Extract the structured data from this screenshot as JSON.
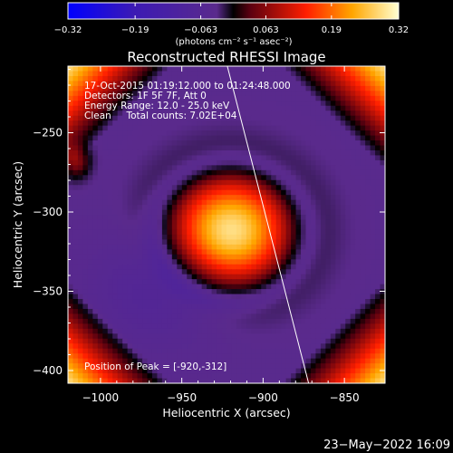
{
  "chart_data": {
    "type": "heatmap",
    "title": "Reconstructed RHESSI Image",
    "xlabel": "Heliocentric X (arcsec)",
    "ylabel": "Heliocentric Y (arcsec)",
    "xlim": [
      -1020,
      -825
    ],
    "ylim": [
      -408,
      -208
    ],
    "x_ticks": [
      -1000,
      -950,
      -900,
      -850
    ],
    "y_ticks": [
      -250,
      -300,
      -350,
      -400
    ],
    "x_tick_labels": [
      "−1000",
      "−950",
      "−900",
      "−850"
    ],
    "y_tick_labels": [
      "−250",
      "−300",
      "−350",
      "−400"
    ],
    "colorbar": {
      "min": -0.32,
      "max": 0.32,
      "ticks": [
        -0.32,
        -0.19,
        -0.063,
        0.063,
        0.19,
        0.32
      ],
      "tick_labels": [
        "−0.32",
        "−0.19",
        "−0.063",
        "0.063",
        "0.19",
        "0.32"
      ],
      "unit_label": "(photons cm⁻² s⁻¹ asec⁻²)"
    },
    "info_lines": [
      "17-Oct-2015 01:19:12.000 to 01:24:48.000",
      "Detectors: 1F 5F 7F, Att 0",
      "Energy Range: 12.0 - 25.0 keV",
      "Clean     Total counts: 7.02E+04"
    ],
    "peak_label": "Position of Peak = [-920,-312]",
    "peak": {
      "x": -920,
      "y": -312
    },
    "limb_line": [
      [
        -922,
        -208
      ],
      [
        -872,
        -408
      ]
    ],
    "timestamp": "23−May−2022 16:09"
  },
  "colors": {
    "background": "#000000",
    "text": "#ffffff"
  }
}
